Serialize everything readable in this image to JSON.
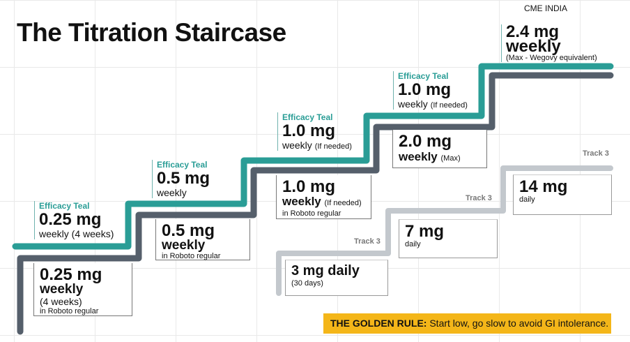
{
  "title": "The Titration Staircase",
  "brand": "CME INDIA",
  "colors": {
    "teal": "#2a9d96",
    "slate": "#555f6b",
    "light": "#c3c8cd",
    "rule": "#f4b619"
  },
  "upper_steps": [
    {
      "tag": "Efficacy Teal",
      "dose": "0.25 mg",
      "detail": "weekly (4 weeks)"
    },
    {
      "tag": "Efficacy Teal",
      "dose": "0.5 mg",
      "detail": "weekly"
    },
    {
      "tag": "Efficacy Teal",
      "dose": "1.0 mg",
      "detail": "weekly",
      "note": "(If needed)"
    },
    {
      "tag": "Efficacy Teal",
      "dose": "1.0 mg",
      "detail": "weekly",
      "note": "(If needed)"
    },
    {
      "dose": "2.4 mg",
      "detail": "weekly",
      "note": "(Max - Wegovy equivalent)"
    }
  ],
  "lower_steps": [
    {
      "dose": "0.25 mg",
      "detail": "weekly",
      "note": "(4 weeks)",
      "font": "in Roboto regular"
    },
    {
      "dose": "0.5 mg",
      "detail": "weekly",
      "font": "in Roboto regular"
    },
    {
      "dose": "1.0 mg",
      "detail": "weekly",
      "note": "(If needed)",
      "font": "in Roboto regular"
    },
    {
      "dose": "2.0 mg",
      "detail": "weekly",
      "note": "(Max)"
    }
  ],
  "track3": {
    "label": "Track 3",
    "steps": [
      {
        "dose": "3 mg daily",
        "note": "(30 days)"
      },
      {
        "dose": "7 mg",
        "detail": "daily"
      },
      {
        "dose": "14 mg",
        "detail": "daily"
      }
    ]
  },
  "golden_rule": {
    "label": "THE GOLDEN RULE:",
    "text": " Start low, go slow to avoid GI intolerance."
  }
}
